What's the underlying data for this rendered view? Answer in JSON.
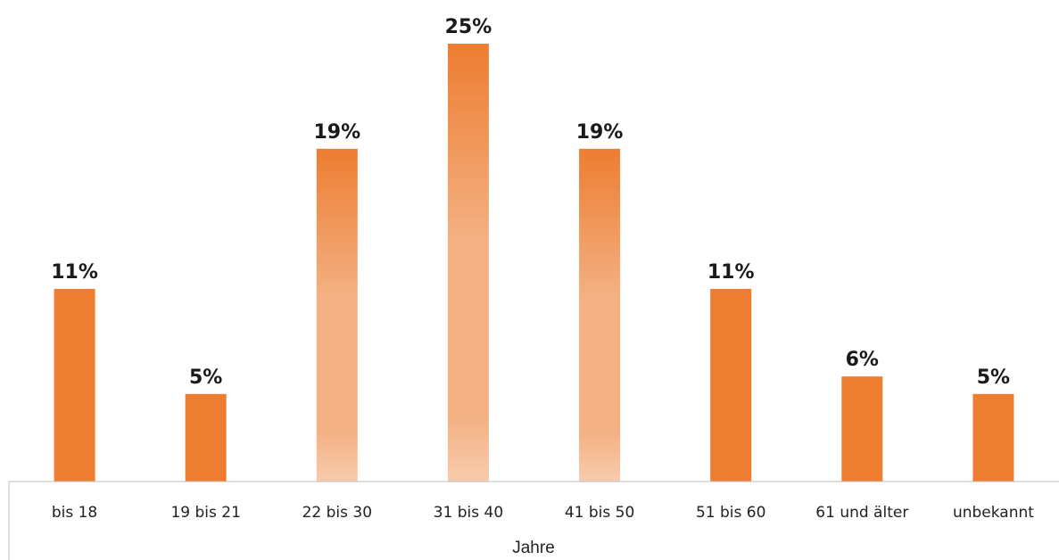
{
  "chart_data": {
    "type": "bar",
    "categories": [
      "bis 18",
      "19 bis 21",
      "22 bis 30",
      "31 bis 40",
      "41 bis 50",
      "51 bis 60",
      "61 und älter",
      "unbekannt"
    ],
    "values": [
      11,
      5,
      19,
      25,
      19,
      11,
      6,
      5
    ],
    "value_labels": [
      "11%",
      "5%",
      "19%",
      "25%",
      "19%",
      "11%",
      "6%",
      "5%"
    ],
    "highlighted": [
      false,
      false,
      true,
      true,
      true,
      false,
      false,
      false
    ],
    "xlabel": "Jahre",
    "ylabel": "",
    "ylim": [
      0,
      25
    ],
    "grid": false,
    "colors": {
      "bar": "#ED7D31",
      "highlight_top": "#ED7D31",
      "highlight_mid": "#F4B183",
      "highlight_bottom": "#F8CBAD",
      "axis": "#BFBFBF"
    }
  }
}
